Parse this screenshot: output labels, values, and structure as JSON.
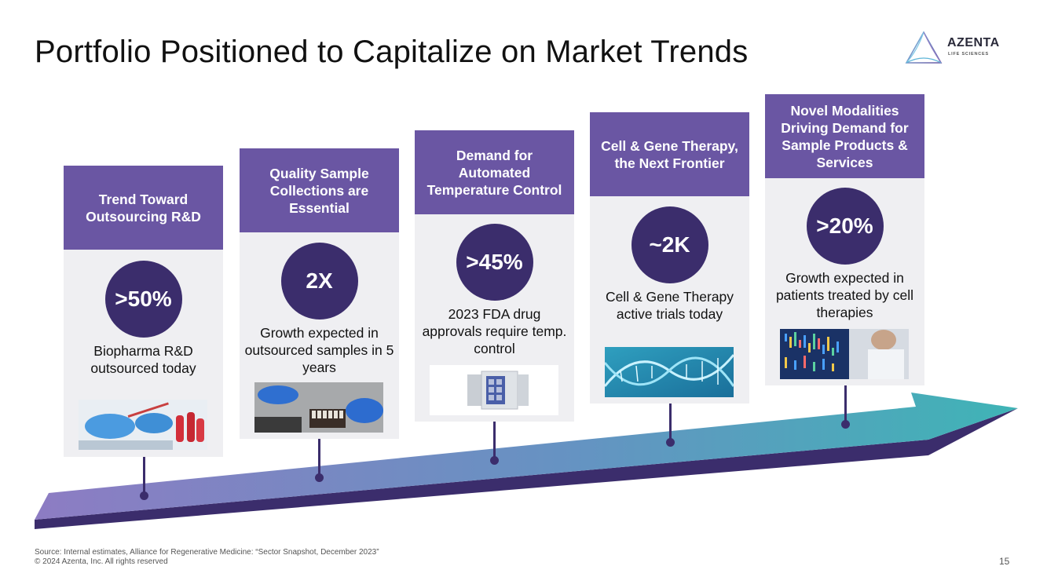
{
  "title": "Portfolio Positioned to Capitalize on Market Trends",
  "logo": {
    "name": "AZENTA",
    "sub": "LIFE SCIENCES"
  },
  "cards": [
    {
      "header": "Trend Toward Outsourcing R&D",
      "stat": ">50%",
      "desc": "Biopharma R&D outsourced today",
      "image": "lab-gloves-test-tubes-photo"
    },
    {
      "header": "Quality Sample Collections are Essential",
      "stat": "2X",
      "desc": "Growth expected in outsourced samples in 5 years",
      "image": "cryo-sample-handling-photo"
    },
    {
      "header": "Demand for Automated Temperature Control",
      "stat": ">45%",
      "desc": "2023 FDA drug approvals require temp. control",
      "image": "automated-freezer-photo"
    },
    {
      "header": "Cell & Gene Therapy, the Next Frontier",
      "stat": "~2K",
      "desc": "Cell & Gene Therapy active trials today",
      "image": "dna-helix-photo"
    },
    {
      "header": "Novel Modalities Driving Demand for Sample Products & Services",
      "stat": ">20%",
      "desc": "Growth expected in patients treated by cell therapies",
      "image": "scientist-data-screen-photo"
    }
  ],
  "footer": {
    "source": "Source: Internal estimates, Alliance for Regenerative Medicine: “Sector Snapshot, December 2023”",
    "copyright": "© 2024 Azenta, Inc.  All rights reserved",
    "page_number": "15"
  },
  "colors": {
    "header_purple": "#6a56a3",
    "circle_purple": "#3b2d6c",
    "card_bg": "#efeff2",
    "arrow_start": "#8d7cc3",
    "arrow_end": "#3fb1b6"
  }
}
